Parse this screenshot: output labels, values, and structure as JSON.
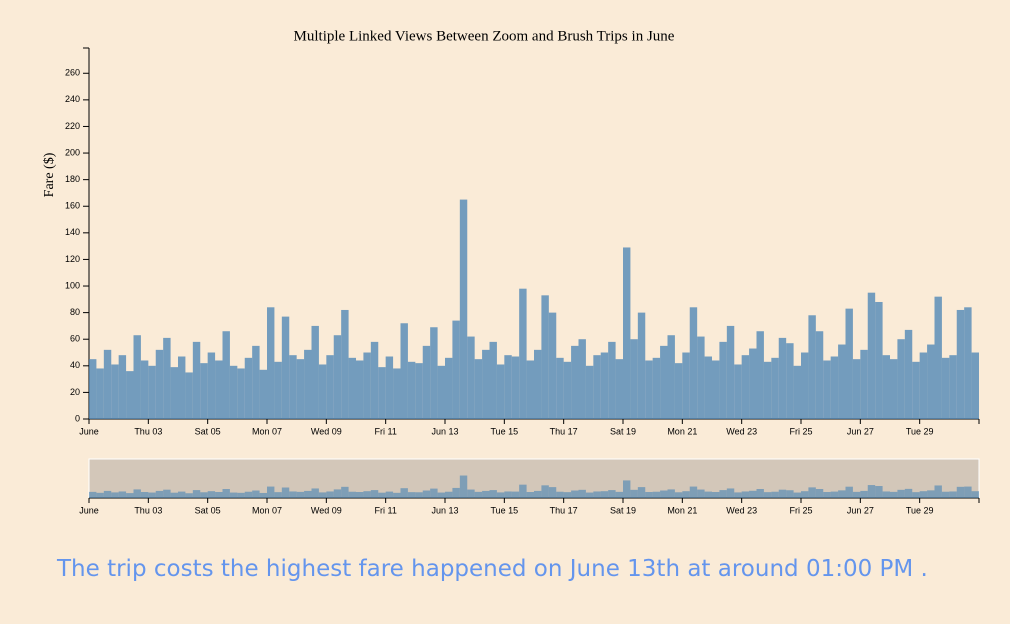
{
  "chart_data": {
    "type": "bar",
    "title": "Multiple Linked Views Between Zoom and Brush Trips in June",
    "y_label": "Fare ($)",
    "color": "#4682b4",
    "xlim": [
      1,
      31
    ],
    "xticks": [
      {
        "value": 1,
        "label": "June"
      },
      {
        "value": 3,
        "label": "Thu 03"
      },
      {
        "value": 5,
        "label": "Sat 05"
      },
      {
        "value": 7,
        "label": "Mon 07"
      },
      {
        "value": 9,
        "label": "Wed 09"
      },
      {
        "value": 11,
        "label": "Fri 11"
      },
      {
        "value": 13,
        "label": "Jun 13"
      },
      {
        "value": 15,
        "label": "Tue 15"
      },
      {
        "value": 17,
        "label": "Thu 17"
      },
      {
        "value": 19,
        "label": "Sat 19"
      },
      {
        "value": 21,
        "label": "Mon 21"
      },
      {
        "value": 23,
        "label": "Wed 23"
      },
      {
        "value": 25,
        "label": "Fri 25"
      },
      {
        "value": 27,
        "label": "Jun 27"
      },
      {
        "value": 29,
        "label": "Tue 29"
      }
    ],
    "ylim": [
      0,
      279
    ],
    "yticks": [
      0,
      20,
      40,
      60,
      80,
      100,
      120,
      140,
      160,
      180,
      200,
      220,
      240,
      260
    ],
    "x": [
      1,
      1.25,
      1.5,
      1.75,
      2,
      2.25,
      2.5,
      2.75,
      3,
      3.25,
      3.5,
      3.75,
      4,
      4.25,
      4.5,
      4.75,
      5,
      5.25,
      5.5,
      5.75,
      6,
      6.25,
      6.5,
      6.75,
      7,
      7.25,
      7.5,
      7.75,
      8,
      8.25,
      8.5,
      8.75,
      9,
      9.25,
      9.5,
      9.75,
      10,
      10.25,
      10.5,
      10.75,
      11,
      11.25,
      11.5,
      11.75,
      12,
      12.25,
      12.5,
      12.75,
      13,
      13.25,
      13.5,
      13.75,
      14,
      14.25,
      14.5,
      14.75,
      15,
      15.25,
      15.5,
      15.75,
      16,
      16.25,
      16.5,
      16.75,
      17,
      17.25,
      17.5,
      17.75,
      18,
      18.25,
      18.5,
      18.75,
      19,
      19.25,
      19.5,
      19.75,
      20,
      20.25,
      20.5,
      20.75,
      21,
      21.25,
      21.5,
      21.75,
      22,
      22.25,
      22.5,
      22.75,
      23,
      23.25,
      23.5,
      23.75,
      24,
      24.25,
      24.5,
      24.75,
      25,
      25.25,
      25.5,
      25.75,
      26,
      26.25,
      26.5,
      26.75,
      27,
      27.25,
      27.5,
      27.75,
      28,
      28.25,
      28.5,
      28.75,
      29,
      29.25,
      29.5,
      29.75,
      30,
      30.25,
      30.5,
      30.75
    ],
    "values": [
      45,
      38,
      52,
      41,
      48,
      36,
      63,
      44,
      40,
      52,
      61,
      39,
      47,
      35,
      58,
      42,
      50,
      44,
      66,
      40,
      38,
      46,
      55,
      37,
      84,
      43,
      77,
      48,
      45,
      52,
      70,
      41,
      48,
      63,
      82,
      46,
      44,
      50,
      58,
      39,
      47,
      38,
      72,
      43,
      42,
      55,
      69,
      40,
      46,
      74,
      165,
      62,
      45,
      52,
      58,
      41,
      48,
      47,
      98,
      44,
      52,
      93,
      80,
      46,
      43,
      55,
      60,
      40,
      48,
      50,
      58,
      45,
      129,
      60,
      80,
      44,
      46,
      55,
      63,
      42,
      50,
      84,
      62,
      47,
      44,
      58,
      70,
      41,
      48,
      53,
      66,
      43,
      46,
      61,
      57,
      40,
      50,
      78,
      66,
      44,
      47,
      56,
      83,
      45,
      52,
      95,
      88,
      48,
      45,
      60,
      67,
      43,
      50,
      56,
      92,
      46,
      48,
      82,
      84,
      50
    ]
  },
  "caption": "The trip costs the highest fare happened on June 13th at around 01:00 PM ."
}
